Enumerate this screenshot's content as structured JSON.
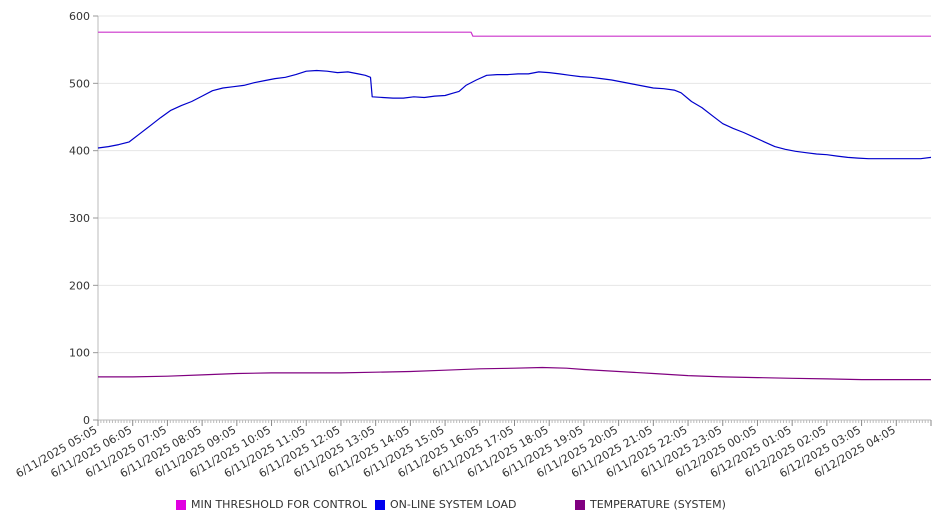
{
  "chart_data": {
    "type": "line",
    "title": "",
    "xlabel": "",
    "ylabel": "",
    "ylim": [
      0,
      600
    ],
    "yticks": [
      0,
      100,
      200,
      300,
      400,
      500,
      600
    ],
    "grid": true,
    "legend_position": "bottom",
    "x_tick_labels": [
      "6/11/2025 05:05",
      "6/11/2025 06:05",
      "6/11/2025 07:05",
      "6/11/2025 08:05",
      "6/11/2025 09:05",
      "6/11/2025 10:05",
      "6/11/2025 11:05",
      "6/11/2025 12:05",
      "6/11/2025 13:05",
      "6/11/2025 14:05",
      "6/11/2025 15:05",
      "6/11/2025 16:05",
      "6/11/2025 17:05",
      "6/11/2025 18:05",
      "6/11/2025 19:05",
      "6/11/2025 20:05",
      "6/11/2025 21:05",
      "6/11/2025 22:05",
      "6/11/2025 23:05",
      "6/12/2025 00:05",
      "6/12/2025 01:05",
      "6/12/2025 02:05",
      "6/12/2025 03:05",
      "6/12/2025 04:05"
    ],
    "x_end": "6/12/2025 05:05",
    "series": [
      {
        "name": "MIN THRESHOLD FOR CONTROL",
        "color": "#cc33cc",
        "values": [
          [
            0,
            576
          ],
          [
            10.75,
            576
          ],
          [
            10.8,
            570
          ],
          [
            24,
            570
          ]
        ]
      },
      {
        "name": "ON-LINE SYSTEM LOAD",
        "color": "#0000cc",
        "values": [
          [
            0,
            404
          ],
          [
            0.3,
            406
          ],
          [
            0.6,
            409
          ],
          [
            0.9,
            413
          ],
          [
            1.2,
            425
          ],
          [
            1.5,
            437
          ],
          [
            1.8,
            449
          ],
          [
            2.1,
            460
          ],
          [
            2.4,
            467
          ],
          [
            2.7,
            473
          ],
          [
            3,
            481
          ],
          [
            3.3,
            489
          ],
          [
            3.6,
            493
          ],
          [
            3.9,
            495
          ],
          [
            4.2,
            497
          ],
          [
            4.5,
            501
          ],
          [
            4.8,
            504
          ],
          [
            5.1,
            507
          ],
          [
            5.4,
            509
          ],
          [
            5.7,
            513
          ],
          [
            6,
            518
          ],
          [
            6.3,
            519
          ],
          [
            6.6,
            518
          ],
          [
            6.9,
            516
          ],
          [
            7.2,
            517
          ],
          [
            7.5,
            514
          ],
          [
            7.7,
            512
          ],
          [
            7.85,
            509
          ],
          [
            7.9,
            480
          ],
          [
            8.2,
            479
          ],
          [
            8.5,
            478
          ],
          [
            8.8,
            478
          ],
          [
            9.1,
            480
          ],
          [
            9.4,
            479
          ],
          [
            9.7,
            481
          ],
          [
            10,
            482
          ],
          [
            10.2,
            485
          ],
          [
            10.4,
            488
          ],
          [
            10.6,
            497
          ],
          [
            10.9,
            505
          ],
          [
            11.2,
            512
          ],
          [
            11.5,
            513
          ],
          [
            11.8,
            513
          ],
          [
            12.1,
            514
          ],
          [
            12.4,
            514
          ],
          [
            12.7,
            517
          ],
          [
            13,
            516
          ],
          [
            13.3,
            514
          ],
          [
            13.6,
            512
          ],
          [
            13.9,
            510
          ],
          [
            14.2,
            509
          ],
          [
            14.5,
            507
          ],
          [
            14.8,
            505
          ],
          [
            15.1,
            502
          ],
          [
            15.4,
            499
          ],
          [
            15.7,
            496
          ],
          [
            16,
            493
          ],
          [
            16.3,
            492
          ],
          [
            16.6,
            490
          ],
          [
            16.8,
            486
          ],
          [
            17.1,
            473
          ],
          [
            17.4,
            464
          ],
          [
            17.7,
            452
          ],
          [
            18,
            440
          ],
          [
            18.3,
            433
          ],
          [
            18.6,
            427
          ],
          [
            18.9,
            420
          ],
          [
            19.2,
            413
          ],
          [
            19.5,
            406
          ],
          [
            19.8,
            402
          ],
          [
            20.1,
            399
          ],
          [
            20.4,
            397
          ],
          [
            20.7,
            395
          ],
          [
            21,
            394
          ],
          [
            21.3,
            392
          ],
          [
            21.6,
            390
          ],
          [
            21.9,
            389
          ],
          [
            22.2,
            388
          ],
          [
            22.5,
            388
          ],
          [
            22.8,
            388
          ],
          [
            23.1,
            388
          ],
          [
            23.4,
            388
          ],
          [
            23.7,
            388
          ],
          [
            24,
            390
          ]
        ]
      },
      {
        "name": "TEMPERATURE (SYSTEM)",
        "color": "#800080",
        "values": [
          [
            0,
            64
          ],
          [
            1,
            64
          ],
          [
            2,
            65
          ],
          [
            3,
            67
          ],
          [
            4,
            69
          ],
          [
            5,
            70
          ],
          [
            6,
            70
          ],
          [
            7,
            70
          ],
          [
            8,
            71
          ],
          [
            9,
            72
          ],
          [
            10,
            74
          ],
          [
            11,
            76
          ],
          [
            12,
            77
          ],
          [
            12.8,
            78
          ],
          [
            13.5,
            77
          ],
          [
            14,
            75
          ],
          [
            15,
            72
          ],
          [
            16,
            69
          ],
          [
            17,
            66
          ],
          [
            18,
            64
          ],
          [
            19,
            63
          ],
          [
            20,
            62
          ],
          [
            21,
            61
          ],
          [
            22,
            60
          ],
          [
            23,
            60
          ],
          [
            24,
            60
          ]
        ]
      }
    ]
  }
}
